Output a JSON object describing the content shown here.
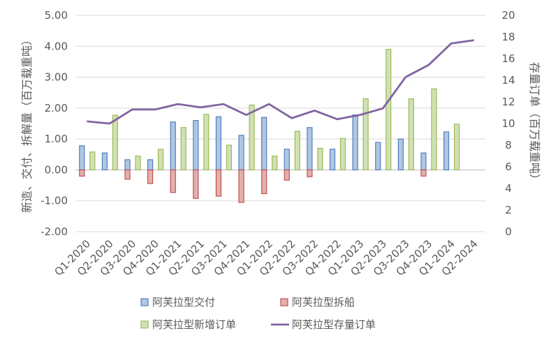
{
  "chart_data": {
    "type": "bar",
    "categories": [
      "Q1-2020",
      "Q2-2020",
      "Q3-2020",
      "Q4-2020",
      "Q1-2021",
      "Q2-2021",
      "Q3-2021",
      "Q4-2021",
      "Q1-2022",
      "Q2-2022",
      "Q3-2022",
      "Q4-2022",
      "Q1-2023",
      "Q2-2023",
      "Q3-2023",
      "Q4-2023",
      "Q1-2024",
      "Q2-2024"
    ],
    "series": [
      {
        "name": "阿芙拉型交付",
        "type": "bar",
        "axis": "left",
        "color": "#4f81bd",
        "values": [
          0.78,
          0.55,
          0.33,
          0.33,
          1.55,
          1.6,
          1.72,
          1.12,
          1.7,
          0.67,
          1.37,
          0.67,
          1.78,
          0.89,
          1.0,
          0.55,
          1.23,
          null
        ]
      },
      {
        "name": "阿芙拉型拆船",
        "type": "bar",
        "axis": "left",
        "color": "#c0504d",
        "values": [
          -0.2,
          null,
          -0.3,
          -0.44,
          -0.73,
          -0.92,
          -0.85,
          -1.05,
          -0.77,
          -0.33,
          -0.22,
          null,
          null,
          null,
          null,
          -0.2,
          null,
          null
        ]
      },
      {
        "name": "阿芙拉型新增订单",
        "type": "bar",
        "axis": "left",
        "color": "#9bbb59",
        "values": [
          0.58,
          1.77,
          0.45,
          0.67,
          1.37,
          1.8,
          0.8,
          2.1,
          0.45,
          1.25,
          0.7,
          1.02,
          2.3,
          3.9,
          2.3,
          2.62,
          1.48,
          null
        ]
      },
      {
        "name": "阿芙拉型存量订单",
        "type": "line",
        "axis": "right",
        "color": "#8064a2",
        "values": [
          10.2,
          10.0,
          11.3,
          11.3,
          11.8,
          11.5,
          11.8,
          10.8,
          11.8,
          10.5,
          11.2,
          10.4,
          10.8,
          11.4,
          14.3,
          15.4,
          17.4,
          17.7
        ]
      }
    ],
    "y_left": {
      "label": "新造、交付、拆解量（百万载重吨）",
      "min": -2,
      "max": 5,
      "step": 1,
      "ticks": [
        "-2.00",
        "-1.00",
        "0.00",
        "1.00",
        "2.00",
        "3.00",
        "4.00",
        "5.00"
      ]
    },
    "y_right": {
      "label": "存量订单（百万载重吨）",
      "min": 0,
      "max": 20,
      "step": 2,
      "ticks": [
        "0",
        "2",
        "4",
        "6",
        "8",
        "10",
        "12",
        "14",
        "16",
        "18",
        "20"
      ]
    },
    "grid": true,
    "legend": "bottom"
  }
}
